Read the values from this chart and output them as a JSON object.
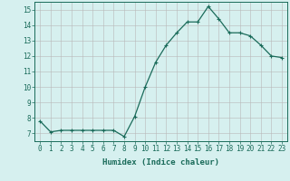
{
  "x": [
    0,
    1,
    2,
    3,
    4,
    5,
    6,
    7,
    8,
    9,
    10,
    11,
    12,
    13,
    14,
    15,
    16,
    17,
    18,
    19,
    20,
    21,
    22,
    23
  ],
  "y": [
    7.8,
    7.1,
    7.2,
    7.2,
    7.2,
    7.2,
    7.2,
    7.2,
    6.8,
    8.1,
    10.0,
    11.6,
    12.7,
    13.5,
    14.2,
    14.2,
    15.2,
    14.4,
    13.5,
    13.5,
    13.3,
    12.7,
    12.0,
    11.9
  ],
  "line_color": "#1a6b5a",
  "marker": "+",
  "markersize": 3,
  "linewidth": 0.9,
  "bg_color": "#d6f0ef",
  "grid_color": "#b8b8b8",
  "xlabel": "Humidex (Indice chaleur)",
  "ylabel": "",
  "xlim": [
    -0.5,
    23.5
  ],
  "ylim": [
    6.5,
    15.5
  ],
  "yticks": [
    7,
    8,
    9,
    10,
    11,
    12,
    13,
    14,
    15
  ],
  "xticks": [
    0,
    1,
    2,
    3,
    4,
    5,
    6,
    7,
    8,
    9,
    10,
    11,
    12,
    13,
    14,
    15,
    16,
    17,
    18,
    19,
    20,
    21,
    22,
    23
  ],
  "tick_fontsize": 5.5,
  "xlabel_fontsize": 6.5,
  "axis_color": "#1a6b5a",
  "markeredgewidth": 0.8
}
